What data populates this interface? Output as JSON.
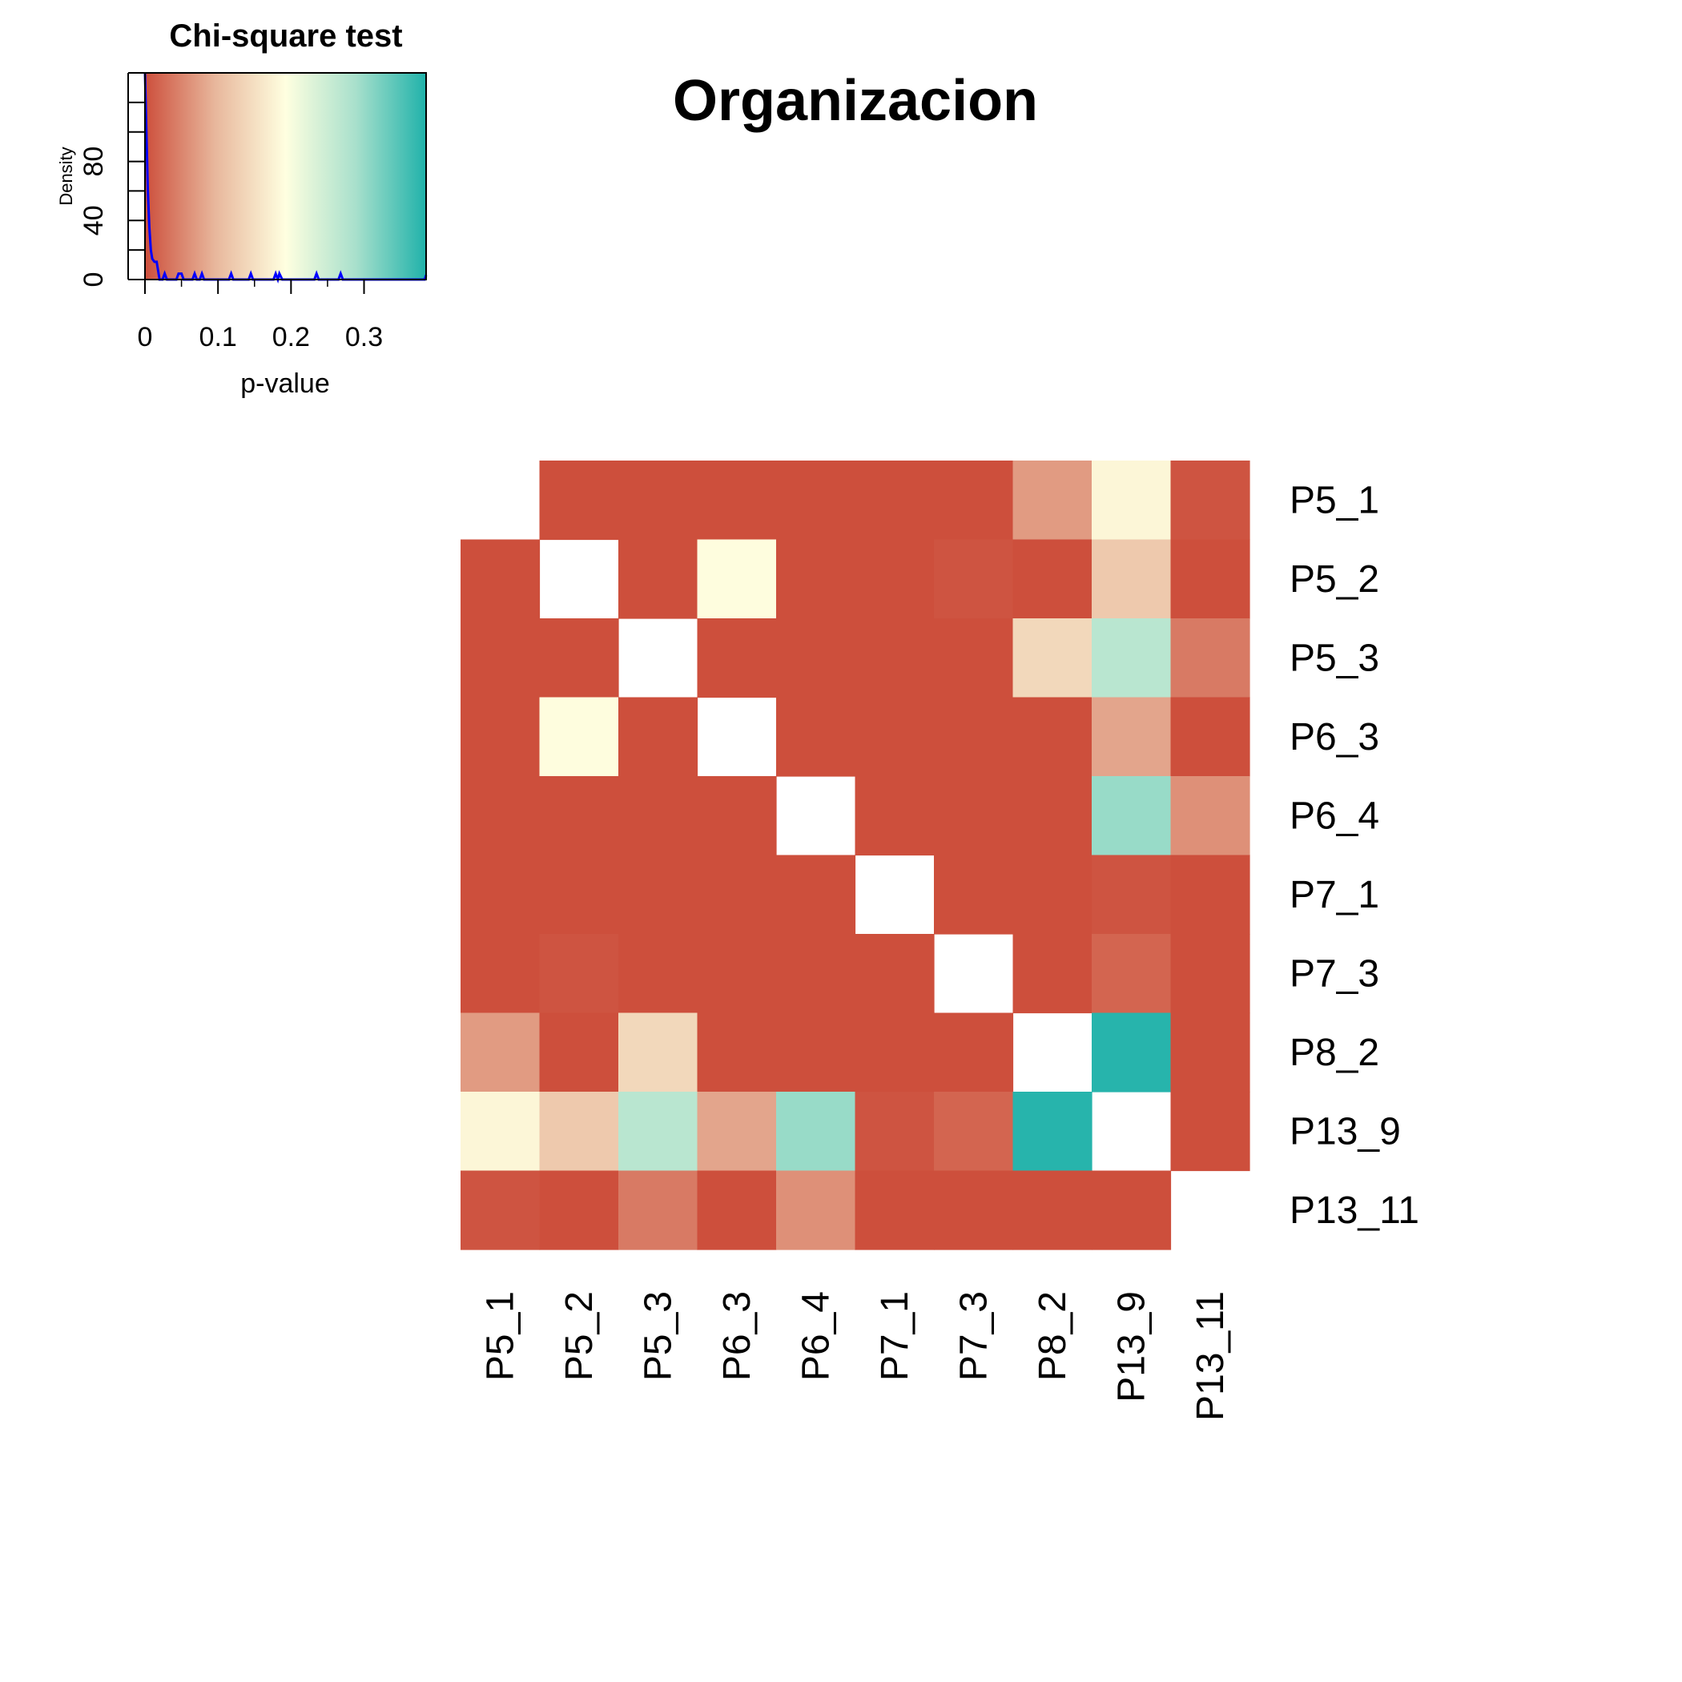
{
  "chart_data": {
    "type": "heatmap",
    "title": "Organizacion",
    "rows": [
      "P5_1",
      "P5_2",
      "P5_3",
      "P6_3",
      "P6_4",
      "P7_1",
      "P7_3",
      "P8_2",
      "P13_9",
      "P13_11"
    ],
    "cols": [
      "P5_1",
      "P5_2",
      "P5_3",
      "P6_3",
      "P6_4",
      "P7_1",
      "P7_3",
      "P8_2",
      "P13_9",
      "P13_11"
    ],
    "values": [
      [
        null,
        0.0,
        0.0,
        0.0,
        0.0,
        0.0,
        0.0,
        0.07,
        0.18,
        0.005
      ],
      [
        0.0,
        null,
        0.0,
        0.19,
        0.0,
        0.0,
        0.005,
        0.0,
        0.12,
        0.0
      ],
      [
        0.0,
        0.0,
        null,
        0.0,
        0.0,
        0.0,
        0.0,
        0.14,
        0.27,
        0.04
      ],
      [
        0.0,
        0.19,
        0.0,
        null,
        0.0,
        0.0,
        0.0,
        0.0,
        0.08,
        0.0
      ],
      [
        0.0,
        0.0,
        0.0,
        0.0,
        null,
        0.0,
        0.0,
        0.0,
        0.3,
        0.06
      ],
      [
        0.0,
        0.0,
        0.0,
        0.0,
        0.0,
        null,
        0.0,
        0.0,
        0.005,
        0.0
      ],
      [
        0.0,
        0.005,
        0.0,
        0.0,
        0.0,
        0.0,
        null,
        0.0,
        0.02,
        0.0
      ],
      [
        0.07,
        0.0,
        0.14,
        0.0,
        0.0,
        0.0,
        0.0,
        null,
        0.38,
        0.0
      ],
      [
        0.18,
        0.12,
        0.27,
        0.08,
        0.3,
        0.005,
        0.02,
        0.38,
        null,
        0.0
      ],
      [
        0.005,
        0.0,
        0.04,
        0.0,
        0.06,
        0.0,
        0.0,
        0.0,
        0.0,
        null
      ]
    ],
    "color_scale": {
      "min": 0,
      "max": 0.385,
      "stops": [
        "#CD4F3C",
        "#E8B79C",
        "#FFFFE0",
        "#A8E0CC",
        "#20B2AA"
      ]
    },
    "legend": {
      "title": "Chi-square test",
      "xlabel": "p-value",
      "ylabel": "Density",
      "x_ticks": [
        "0",
        "0.1",
        "0.2",
        "0.3"
      ],
      "y_ticks": [
        "0",
        "40",
        "80"
      ],
      "xlim": [
        0,
        0.385
      ],
      "ylim": [
        0,
        140
      ],
      "density_color": "#0000FF",
      "density_curve": [
        [
          0,
          140
        ],
        [
          0.002,
          100
        ],
        [
          0.004,
          60
        ],
        [
          0.006,
          35
        ],
        [
          0.008,
          20
        ],
        [
          0.01,
          14
        ],
        [
          0.013,
          12
        ],
        [
          0.016,
          12
        ],
        [
          0.018,
          6
        ],
        [
          0.02,
          0
        ],
        [
          0.024,
          0
        ],
        [
          0.027,
          4
        ],
        [
          0.03,
          0
        ],
        [
          0.043,
          0
        ],
        [
          0.046,
          4
        ],
        [
          0.05,
          4
        ],
        [
          0.053,
          0
        ],
        [
          0.065,
          0
        ],
        [
          0.068,
          4
        ],
        [
          0.071,
          0
        ],
        [
          0.075,
          0
        ],
        [
          0.078,
          4
        ],
        [
          0.081,
          0
        ],
        [
          0.115,
          0
        ],
        [
          0.118,
          4
        ],
        [
          0.121,
          0
        ],
        [
          0.142,
          0
        ],
        [
          0.145,
          4
        ],
        [
          0.148,
          0
        ],
        [
          0.176,
          0
        ],
        [
          0.179,
          4
        ],
        [
          0.182,
          0
        ],
        [
          0.184,
          4
        ],
        [
          0.188,
          0
        ],
        [
          0.232,
          0
        ],
        [
          0.235,
          4
        ],
        [
          0.238,
          0
        ],
        [
          0.265,
          0
        ],
        [
          0.268,
          4
        ],
        [
          0.271,
          0
        ],
        [
          0.383,
          0
        ],
        [
          0.385,
          3
        ]
      ]
    }
  }
}
